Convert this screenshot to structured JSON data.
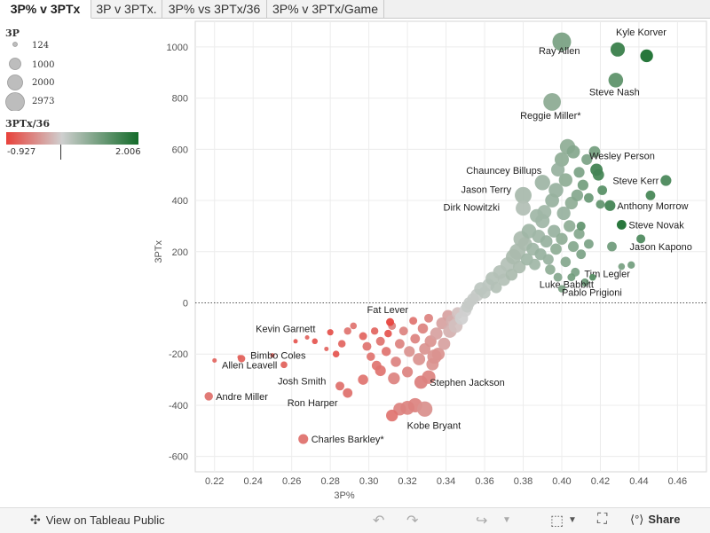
{
  "tabs": [
    {
      "label": "3P% v 3PTx",
      "active": true
    },
    {
      "label": "3P v 3PTx.",
      "active": false
    },
    {
      "label": "3P% vs 3PTx/36",
      "active": false
    },
    {
      "label": "3P% v 3PTx/Game",
      "active": false
    }
  ],
  "legend": {
    "size_title": "3P",
    "size_values": [
      "124",
      "1000",
      "2000",
      "2973"
    ],
    "color_title": "3PTx/36",
    "color_min": "-0.927",
    "color_max": "2.006",
    "color_low": "#e8413a",
    "color_mid": "#cfcfcf",
    "color_high": "#146b2a"
  },
  "footer": {
    "view_label": "View on Tableau Public",
    "share_label": "Share",
    "icons": [
      "tableau-logo-icon",
      "undo-icon",
      "redo-icon",
      "revert-icon",
      "download-icon",
      "fullscreen-icon",
      "share-icon"
    ]
  },
  "chart_data": {
    "type": "scatter",
    "xlabel": "3P%",
    "ylabel": "3PTx",
    "xlim": [
      0.21,
      0.475
    ],
    "ylim": [
      -660,
      1100
    ],
    "xticks": [
      "0.22",
      "0.24",
      "0.26",
      "0.28",
      "0.30",
      "0.32",
      "0.34",
      "0.36",
      "0.38",
      "0.40",
      "0.42",
      "0.44",
      "0.46"
    ],
    "yticks": [
      "-600",
      "-400",
      "-200",
      "0",
      "200",
      "400",
      "600",
      "800",
      "1000"
    ],
    "grid": true,
    "zero_line": "dotted",
    "labeled_points": [
      {
        "label": "Kyle Korver",
        "x": 0.429,
        "y": 990,
        "c": 1.6,
        "s": 1500
      },
      {
        "label": "Ray Allen",
        "x": 0.4,
        "y": 1020,
        "c": 0.9,
        "s": 2973
      },
      {
        "label": "Steve Nash",
        "x": 0.428,
        "y": 870,
        "c": 1.2,
        "s": 1600
      },
      {
        "label": "Reggie Miller*",
        "x": 0.395,
        "y": 785,
        "c": 0.7,
        "s": 2560
      },
      {
        "label": "Wesley Person",
        "x": 0.418,
        "y": 520,
        "c": 1.5,
        "s": 1000
      },
      {
        "label": "Steve Kerr",
        "x": 0.454,
        "y": 478,
        "c": 1.4,
        "s": 700
      },
      {
        "label": "Chauncey Billups",
        "x": 0.39,
        "y": 470,
        "c": 0.5,
        "s": 1830
      },
      {
        "label": "Jason Terry",
        "x": 0.38,
        "y": 420,
        "c": 0.4,
        "s": 2280
      },
      {
        "label": "Anthony Morrow",
        "x": 0.425,
        "y": 380,
        "c": 1.5,
        "s": 700
      },
      {
        "label": "Dirk Nowitzki",
        "x": 0.38,
        "y": 370,
        "c": 0.3,
        "s": 1700
      },
      {
        "label": "Steve Novak",
        "x": 0.431,
        "y": 305,
        "c": 1.9,
        "s": 500
      },
      {
        "label": "Jason Kapono",
        "x": 0.426,
        "y": 220,
        "c": 1.0,
        "s": 500
      },
      {
        "label": "Tim Legler",
        "x": 0.431,
        "y": 142,
        "c": 0.9,
        "s": 200
      },
      {
        "label": "Luke Babbitt",
        "x": 0.416,
        "y": 100,
        "c": 1.3,
        "s": 200
      },
      {
        "label": "Pablo Prigioni",
        "x": 0.4,
        "y": 55,
        "c": 0.9,
        "s": 250
      },
      {
        "label": "Fat Lever",
        "x": 0.311,
        "y": -75,
        "c": -0.9,
        "s": 300
      },
      {
        "label": "Kevin Garnett",
        "x": 0.28,
        "y": -115,
        "c": -0.8,
        "s": 174
      },
      {
        "label": "Bimbo Coles",
        "x": 0.234,
        "y": -218,
        "c": -0.7,
        "s": 250
      },
      {
        "label": "Allen Leavell",
        "x": 0.256,
        "y": -242,
        "c": -0.7,
        "s": 200
      },
      {
        "label": "Andre Miller",
        "x": 0.217,
        "y": -365,
        "c": -0.6,
        "s": 350
      },
      {
        "label": "Josh Smith",
        "x": 0.285,
        "y": -325,
        "c": -0.6,
        "s": 400
      },
      {
        "label": "Stephen Jackson",
        "x": 0.327,
        "y": -310,
        "c": -0.5,
        "s": 1200
      },
      {
        "label": "Ron Harper",
        "x": 0.289,
        "y": -352,
        "c": -0.6,
        "s": 500
      },
      {
        "label": "Kobe Bryant",
        "x": 0.329,
        "y": -415,
        "c": -0.4,
        "s": 1800
      },
      {
        "label": "Charles Barkley*",
        "x": 0.266,
        "y": -532,
        "c": -0.6,
        "s": 540
      }
    ],
    "other_points": [
      [
        0.22,
        -225,
        -0.7,
        124
      ],
      [
        0.233,
        -212,
        -0.7,
        124
      ],
      [
        0.25,
        -205,
        -0.7,
        124
      ],
      [
        0.262,
        -150,
        -0.8,
        124
      ],
      [
        0.268,
        -135,
        -0.7,
        124
      ],
      [
        0.272,
        -150,
        -0.8,
        150
      ],
      [
        0.278,
        -180,
        -0.7,
        124
      ],
      [
        0.283,
        -200,
        -0.8,
        200
      ],
      [
        0.286,
        -160,
        -0.7,
        260
      ],
      [
        0.289,
        -110,
        -0.6,
        250
      ],
      [
        0.292,
        -90,
        -0.6,
        200
      ],
      [
        0.297,
        -130,
        -0.7,
        300
      ],
      [
        0.299,
        -170,
        -0.6,
        400
      ],
      [
        0.301,
        -210,
        -0.6,
        350
      ],
      [
        0.303,
        -110,
        -0.7,
        250
      ],
      [
        0.304,
        -245,
        -0.6,
        500
      ],
      [
        0.306,
        -150,
        -0.6,
        400
      ],
      [
        0.309,
        -190,
        -0.6,
        450
      ],
      [
        0.31,
        -120,
        -0.8,
        260
      ],
      [
        0.312,
        -90,
        -0.5,
        300
      ],
      [
        0.314,
        -230,
        -0.5,
        600
      ],
      [
        0.316,
        -160,
        -0.5,
        500
      ],
      [
        0.318,
        -110,
        -0.5,
        400
      ],
      [
        0.32,
        -270,
        -0.5,
        700
      ],
      [
        0.321,
        -190,
        -0.4,
        700
      ],
      [
        0.323,
        -70,
        -0.6,
        300
      ],
      [
        0.324,
        -140,
        -0.5,
        500
      ],
      [
        0.326,
        -220,
        -0.4,
        1000
      ],
      [
        0.328,
        -100,
        -0.5,
        600
      ],
      [
        0.329,
        -180,
        -0.4,
        800
      ],
      [
        0.331,
        -60,
        -0.5,
        400
      ],
      [
        0.332,
        -150,
        -0.4,
        900
      ],
      [
        0.333,
        -240,
        -0.4,
        1000
      ],
      [
        0.335,
        -120,
        -0.3,
        1000
      ],
      [
        0.336,
        -200,
        -0.4,
        1100
      ],
      [
        0.338,
        -80,
        -0.3,
        900
      ],
      [
        0.339,
        -160,
        -0.3,
        1000
      ],
      [
        0.341,
        -50,
        -0.3,
        800
      ],
      [
        0.342,
        -110,
        -0.2,
        1300
      ],
      [
        0.343,
        -70,
        -0.2,
        900
      ],
      [
        0.345,
        -90,
        -0.1,
        1400
      ],
      [
        0.346,
        -40,
        -0.1,
        900
      ],
      [
        0.348,
        -60,
        0.0,
        1200
      ],
      [
        0.35,
        -30,
        0.0,
        1000
      ],
      [
        0.351,
        -15,
        0.1,
        900
      ],
      [
        0.324,
        -400,
        -0.5,
        1500
      ],
      [
        0.32,
        -410,
        -0.5,
        1400
      ],
      [
        0.316,
        -415,
        -0.5,
        1100
      ],
      [
        0.312,
        -440,
        -0.6,
        900
      ],
      [
        0.334,
        -210,
        -0.4,
        1500
      ],
      [
        0.331,
        -290,
        -0.5,
        1300
      ],
      [
        0.313,
        -295,
        -0.5,
        900
      ],
      [
        0.306,
        -265,
        -0.6,
        700
      ],
      [
        0.297,
        -300,
        -0.6,
        600
      ],
      [
        0.352,
        0,
        0.1,
        800
      ],
      [
        0.354,
        15,
        0.1,
        900
      ],
      [
        0.356,
        30,
        0.1,
        1100
      ],
      [
        0.358,
        55,
        0.2,
        1200
      ],
      [
        0.36,
        40,
        0.2,
        900
      ],
      [
        0.362,
        70,
        0.2,
        1000
      ],
      [
        0.364,
        95,
        0.3,
        1300
      ],
      [
        0.366,
        60,
        0.3,
        800
      ],
      [
        0.368,
        120,
        0.3,
        1400
      ],
      [
        0.37,
        90,
        0.3,
        1000
      ],
      [
        0.372,
        150,
        0.3,
        1600
      ],
      [
        0.374,
        110,
        0.4,
        900
      ],
      [
        0.375,
        180,
        0.4,
        1800
      ],
      [
        0.377,
        200,
        0.4,
        2000
      ],
      [
        0.378,
        140,
        0.4,
        1100
      ],
      [
        0.379,
        250,
        0.4,
        1900
      ],
      [
        0.381,
        230,
        0.4,
        1400
      ],
      [
        0.382,
        170,
        0.5,
        1000
      ],
      [
        0.383,
        280,
        0.5,
        1600
      ],
      [
        0.385,
        210,
        0.5,
        1100
      ],
      [
        0.386,
        150,
        0.5,
        800
      ],
      [
        0.388,
        260,
        0.5,
        1200
      ],
      [
        0.389,
        190,
        0.6,
        900
      ],
      [
        0.39,
        320,
        0.5,
        1500
      ],
      [
        0.392,
        240,
        0.6,
        1000
      ],
      [
        0.393,
        170,
        0.6,
        700
      ],
      [
        0.394,
        130,
        0.7,
        600
      ],
      [
        0.396,
        280,
        0.6,
        1100
      ],
      [
        0.397,
        210,
        0.7,
        800
      ],
      [
        0.398,
        100,
        0.8,
        400
      ],
      [
        0.4,
        250,
        0.7,
        900
      ],
      [
        0.401,
        350,
        0.6,
        1300
      ],
      [
        0.402,
        160,
        0.8,
        600
      ],
      [
        0.404,
        300,
        0.7,
        900
      ],
      [
        0.406,
        220,
        0.8,
        700
      ],
      [
        0.407,
        120,
        0.9,
        400
      ],
      [
        0.409,
        270,
        0.8,
        700
      ],
      [
        0.41,
        190,
        0.9,
        500
      ],
      [
        0.412,
        80,
        1.1,
        300
      ],
      [
        0.414,
        230,
        0.9,
        500
      ],
      [
        0.395,
        400,
        0.6,
        1400
      ],
      [
        0.397,
        440,
        0.6,
        1600
      ],
      [
        0.402,
        480,
        0.7,
        1300
      ],
      [
        0.405,
        390,
        0.7,
        1100
      ],
      [
        0.408,
        420,
        0.8,
        900
      ],
      [
        0.4,
        560,
        0.7,
        1500
      ],
      [
        0.403,
        610,
        0.7,
        1800
      ],
      [
        0.406,
        590,
        0.8,
        1200
      ],
      [
        0.398,
        520,
        0.6,
        1300
      ],
      [
        0.411,
        460,
        1.0,
        700
      ],
      [
        0.414,
        410,
        1.1,
        500
      ],
      [
        0.419,
        500,
        1.5,
        800
      ],
      [
        0.421,
        440,
        1.3,
        500
      ],
      [
        0.409,
        510,
        0.9,
        700
      ],
      [
        0.417,
        590,
        1.0,
        800
      ],
      [
        0.413,
        560,
        0.9,
        700
      ],
      [
        0.391,
        355,
        0.5,
        1400
      ],
      [
        0.387,
        340,
        0.5,
        1300
      ],
      [
        0.42,
        385,
        1.2,
        400
      ],
      [
        0.444,
        965,
        2.0,
        1100
      ],
      [
        0.441,
        250,
        1.4,
        400
      ],
      [
        0.436,
        148,
        1.0,
        250
      ],
      [
        0.446,
        420,
        1.5,
        500
      ],
      [
        0.41,
        300,
        1.2,
        400
      ],
      [
        0.405,
        100,
        1.0,
        300
      ]
    ]
  }
}
